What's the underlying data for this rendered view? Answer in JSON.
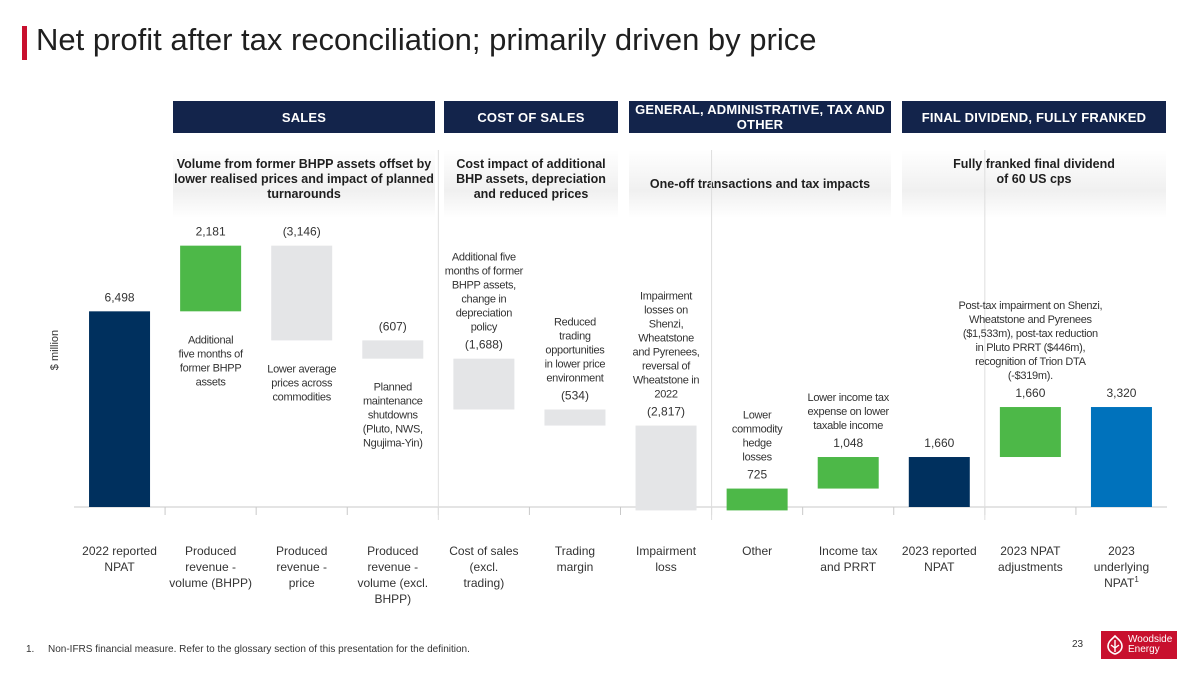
{
  "slide": {
    "title": "Net profit after tax reconciliation; primarily driven by price",
    "page_number": "23",
    "footnote_number": "1.",
    "footnote_text": "Non-IFRS financial measure. Refer to the glossary section of this presentation for the definition.",
    "logo_line1": "Woodside",
    "logo_line2": "Energy"
  },
  "sections": [
    {
      "header": "SALES",
      "subheader": "Volume from former BHPP assets offset by lower realised prices and impact of planned turnarounds"
    },
    {
      "header": "COST OF SALES",
      "subheader": "Cost impact of additional BHP assets, depreciation and reduced prices"
    },
    {
      "header": "GENERAL, ADMINISTRATIVE, TAX AND OTHER",
      "subheader": "One-off transactions and tax impacts"
    },
    {
      "header": "FINAL DIVIDEND, FULLY FRANKED",
      "subheader": "Fully franked final dividend of 60 US cps"
    }
  ],
  "colors": {
    "navy": "#00305e",
    "green": "#4db848",
    "grey": "#e4e5e7",
    "blue": "#0072bc",
    "header_bg": "#13244b"
  },
  "chart_data": {
    "type": "waterfall",
    "ylabel": "$ million",
    "ylim": [
      0,
      8900
    ],
    "steps": [
      {
        "category": "2022 reported NPAT",
        "value": 6498,
        "label": "6,498",
        "kind": "total",
        "color": "navy",
        "annotation": ""
      },
      {
        "category": "Produced revenue - volume (BHPP)",
        "value": 2181,
        "label": "2,181",
        "kind": "delta",
        "color": "green",
        "annotation": "Additional five months of former BHPP assets"
      },
      {
        "category": "Produced revenue - price",
        "value": -3146,
        "label": "(3,146)",
        "kind": "delta",
        "color": "grey",
        "annotation": "Lower average prices across commodities"
      },
      {
        "category": "Produced revenue - volume (excl. BHPP)",
        "value": -607,
        "label": "(607)",
        "kind": "delta",
        "color": "grey",
        "annotation": "Planned maintenance shutdowns (Pluto, NWS, Ngujima-Yin)"
      },
      {
        "category": "Cost of sales (excl. trading)",
        "value": -1688,
        "label": "(1,688)",
        "kind": "delta",
        "color": "grey",
        "annotation": "Additional five months of former BHPP assets, change in depreciation policy"
      },
      {
        "category": "Trading margin",
        "value": -534,
        "label": "(534)",
        "kind": "delta",
        "color": "grey",
        "annotation": "Reduced trading opportunities in lower price environment"
      },
      {
        "category": "Impairment loss",
        "value": -2817,
        "label": "(2,817)",
        "kind": "delta",
        "color": "grey",
        "annotation": "Impairment losses on Shenzi, Wheatstone and Pyrenees, reversal of Wheatstone in 2022"
      },
      {
        "category": "Other",
        "value": 725,
        "label": "725",
        "kind": "delta",
        "color": "green",
        "annotation": "Lower commodity hedge losses"
      },
      {
        "category": "Income tax and PRRT",
        "value": 1048,
        "label": "1,048",
        "kind": "delta",
        "color": "green",
        "annotation": "Lower income tax expense on lower taxable income"
      },
      {
        "category": "2023 reported NPAT",
        "value": 1660,
        "label": "1,660",
        "kind": "total",
        "color": "navy",
        "annotation": ""
      },
      {
        "category": "2023 NPAT adjustments",
        "value": 1660,
        "label": "1,660",
        "kind": "delta",
        "color": "green",
        "annotation": "Post-tax impairment on Shenzi, Wheatstone and Pyrenees ($1,533m), post-tax reduction in Pluto PRRT ($446m), recognition of Trion DTA (-$319m)."
      },
      {
        "category": "2023 underlying NPAT",
        "value": 3320,
        "label": "3,320",
        "kind": "total",
        "color": "blue",
        "annotation": "",
        "superscript": "1"
      }
    ]
  }
}
